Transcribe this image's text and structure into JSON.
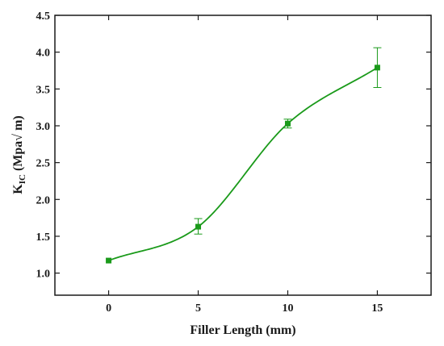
{
  "chart_data": {
    "type": "line",
    "xlabel": "Filler Length (mm)",
    "ylabel_main": "K",
    "ylabel_sub": "IC",
    "ylabel_rest": " (Mpa√ m)",
    "xlim": [
      -3,
      18
    ],
    "ylim": [
      0.7,
      4.5
    ],
    "x_ticks": [
      0,
      5,
      10,
      15
    ],
    "x_tick_labels": [
      "0",
      "5",
      "10",
      "15"
    ],
    "y_ticks": [
      1.0,
      1.5,
      2.0,
      2.5,
      3.0,
      3.5,
      4.0,
      4.5
    ],
    "y_tick_labels": [
      "1.0",
      "1.5",
      "2.0",
      "2.5",
      "3.0",
      "3.5",
      "4.0",
      "4.5"
    ],
    "grid": false,
    "color": "#1a9a1a",
    "series": [
      {
        "x": [
          0,
          5,
          10,
          15
        ],
        "y": [
          1.17,
          1.63,
          3.03,
          3.79
        ],
        "err_low": [
          0.0,
          0.1,
          0.06,
          0.27
        ],
        "err_high": [
          0.0,
          0.11,
          0.06,
          0.27
        ],
        "marker": "square"
      }
    ]
  }
}
